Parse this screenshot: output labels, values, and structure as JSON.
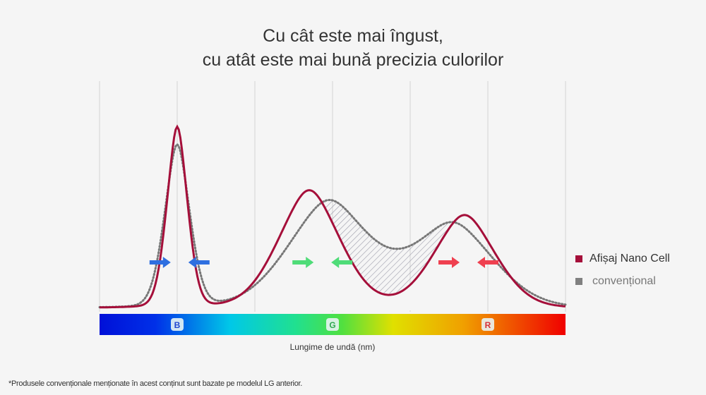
{
  "chart_data": {
    "type": "line",
    "title_line1": "Cu cât este mai îngust,",
    "title_line2": "cu atât este mai bună precizia culorilor",
    "xlabel": "Lungime de undă (nm)",
    "xlim": [
      0,
      6
    ],
    "ylim": [
      0,
      1
    ],
    "band_labels": [
      {
        "label": "B",
        "x": 1,
        "color": "#2046d0"
      },
      {
        "label": "G",
        "x": 3,
        "color": "#2fa84f"
      },
      {
        "label": "R",
        "x": 5,
        "color": "#d6303a"
      }
    ],
    "series": [
      {
        "name": "Afișaj Nano Cell",
        "color": "#a50f3a",
        "style": "solid",
        "peaks": [
          {
            "x": 1.0,
            "height": 0.8,
            "sigma": 0.14
          },
          {
            "x": 2.7,
            "height": 0.52,
            "sigma": 0.42
          },
          {
            "x": 4.7,
            "height": 0.41,
            "sigma": 0.42
          }
        ]
      },
      {
        "name": "convențional",
        "color": "#777777",
        "style": "dotted",
        "peaks": [
          {
            "x": 1.0,
            "height": 0.72,
            "sigma": 0.17
          },
          {
            "x": 2.95,
            "height": 0.47,
            "sigma": 0.55
          },
          {
            "x": 4.55,
            "height": 0.37,
            "sigma": 0.55
          }
        ]
      }
    ],
    "arrows": [
      {
        "x": 0.78,
        "dir": "right",
        "color": "#2e6fe0"
      },
      {
        "x": 1.28,
        "dir": "left",
        "color": "#2e6fe0"
      },
      {
        "x": 2.62,
        "dir": "right",
        "color": "#4fdc78"
      },
      {
        "x": 3.12,
        "dir": "left",
        "color": "#4fdc78"
      },
      {
        "x": 4.5,
        "dir": "right",
        "color": "#ef4050"
      },
      {
        "x": 5.0,
        "dir": "left",
        "color": "#ef4050"
      }
    ]
  },
  "footnote": "*Produsele convenționale menționate în acest conținut sunt bazate pe modelul LG anterior."
}
